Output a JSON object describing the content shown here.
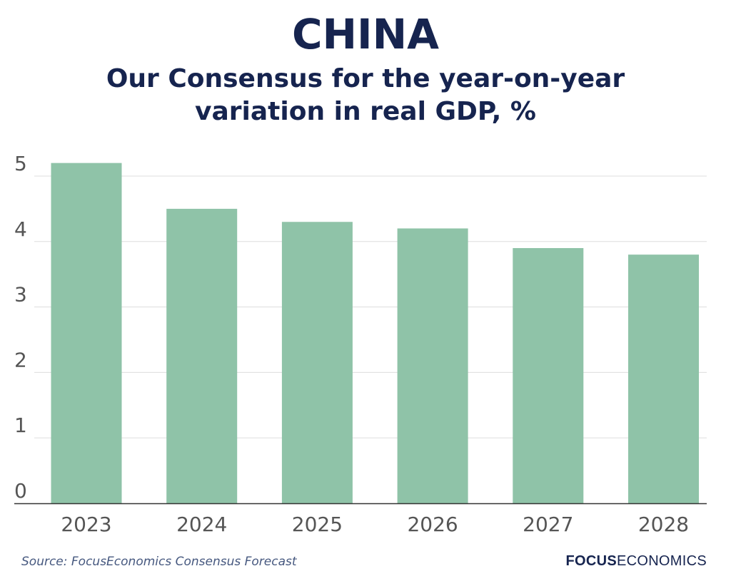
{
  "chart_data": {
    "type": "bar",
    "title": "CHINA",
    "subtitle": "Our Consensus for the year-on-year variation in real GDP, %",
    "categories": [
      "2023",
      "2024",
      "2025",
      "2026",
      "2027",
      "2028"
    ],
    "values": [
      5.2,
      4.5,
      4.3,
      4.2,
      3.9,
      3.8
    ],
    "ylim": [
      0,
      5
    ],
    "yticks": [
      "0",
      "1",
      "2",
      "3",
      "4",
      "5"
    ],
    "xlabel": "",
    "ylabel": "",
    "grid": true,
    "legend": "none",
    "bar_color": "#8fc3a8"
  },
  "footer": {
    "source": "Source: FocusEconomics Consensus Forecast",
    "brand_bold": "FOCUS",
    "brand_rest": "ECONOMICS"
  },
  "colors": {
    "title": "#16244f",
    "grid": "#dddddd",
    "axis": "#333333",
    "tick_label": "#555555"
  }
}
